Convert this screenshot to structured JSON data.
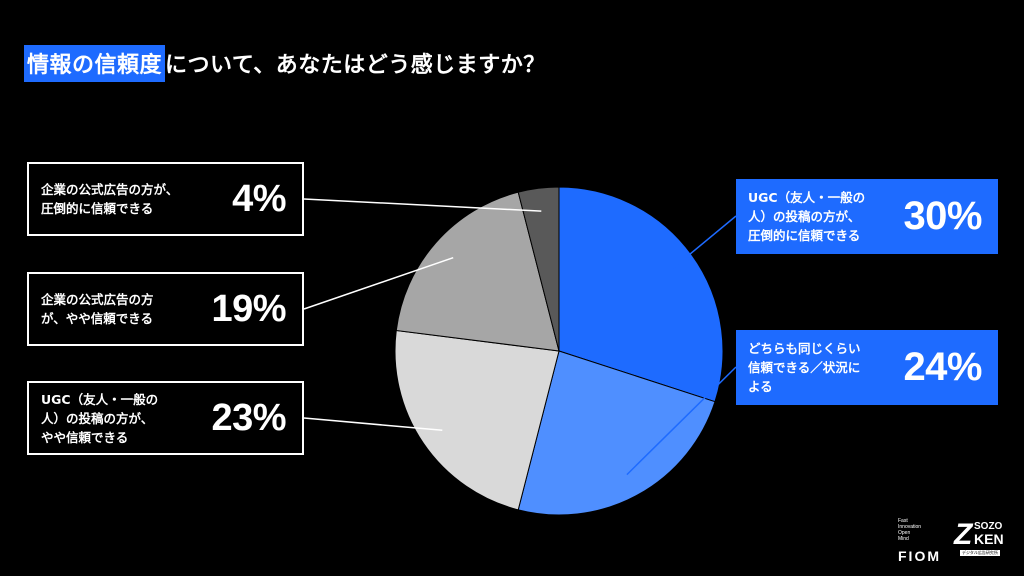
{
  "title": {
    "highlight": "情報の信頼度",
    "rest": "について、あなたはどう感じますか？"
  },
  "labels": {
    "l1": {
      "text": "企業の公式広告の方が、\n圧倒的に信頼できる",
      "pct": "4%"
    },
    "l2": {
      "text": "企業の公式広告の方\nが、やや信頼できる",
      "pct": "19%"
    },
    "l3": {
      "text": "UGC（友人・一般の\n人）の投稿の方が、\nやや信頼できる",
      "pct": "23%"
    },
    "r1": {
      "text": "UGC（友人・一般の\n人）の投稿の方が、\n圧倒的に信頼できる",
      "pct": "30%"
    },
    "r2": {
      "text": "どちらも同じくらい\n信頼できる／状況に\nよる",
      "pct": "24%"
    }
  },
  "chart_data": {
    "type": "pie",
    "start_angle": "12 o'clock",
    "direction": "clockwise",
    "slices": [
      {
        "label": "UGC（友人・一般の人）の投稿の方が、圧倒的に信頼できる",
        "value": 30,
        "color": "#1e6bff"
      },
      {
        "label": "どちらも同じくらい信頼できる／状況による",
        "value": 24,
        "color": "#4f8fff"
      },
      {
        "label": "UGC（友人・一般の人）の投稿の方が、やや信頼できる",
        "value": 23,
        "color": "#d9d9d9"
      },
      {
        "label": "企業の公式広告の方が、やや信頼できる",
        "value": 19,
        "color": "#a6a6a6"
      },
      {
        "label": "企業の公式広告の方が、圧倒的に信頼できる",
        "value": 4,
        "color": "#595959"
      }
    ]
  },
  "logo": {
    "fiom_tagline": "Fast\nInnovation\nOpen\nMind",
    "fiom": "FIOM",
    "sozo_z": "Z",
    "sozo_top": "SOZO",
    "sozo_bottom": "KEN",
    "sozo_tag": "デジタル広告研究所"
  }
}
